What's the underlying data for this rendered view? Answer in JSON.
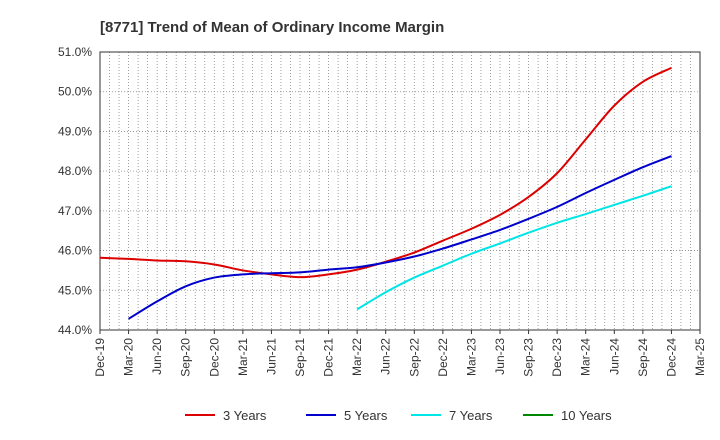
{
  "chart_data": {
    "type": "line",
    "title": "[8771]  Trend of Mean of Ordinary Income Margin",
    "xlabel": "",
    "ylabel": "",
    "x": [
      "Dec-19",
      "Mar-20",
      "Jun-20",
      "Sep-20",
      "Dec-20",
      "Mar-21",
      "Jun-21",
      "Sep-21",
      "Dec-21",
      "Mar-22",
      "Jun-22",
      "Sep-22",
      "Dec-22",
      "Mar-23",
      "Jun-23",
      "Sep-23",
      "Dec-23",
      "Mar-24",
      "Jun-24",
      "Sep-24",
      "Dec-24",
      "Mar-25"
    ],
    "yticks": [
      "44.0%",
      "45.0%",
      "46.0%",
      "47.0%",
      "48.0%",
      "49.0%",
      "50.0%",
      "51.0%"
    ],
    "ylim": [
      44.0,
      51.0
    ],
    "grid": true,
    "legend_position": "bottom",
    "series": [
      {
        "name": "3 Years",
        "color": "#dd0000",
        "values": [
          45.82,
          45.79,
          45.75,
          45.73,
          45.65,
          45.5,
          45.4,
          45.33,
          45.4,
          45.52,
          45.72,
          45.95,
          46.25,
          46.55,
          46.9,
          47.35,
          47.95,
          48.8,
          49.65,
          50.25,
          50.6,
          null
        ]
      },
      {
        "name": "5 Years",
        "color": "#0000cc",
        "values": [
          null,
          44.28,
          44.72,
          45.1,
          45.32,
          45.4,
          45.43,
          45.45,
          45.52,
          45.58,
          45.7,
          45.85,
          46.05,
          46.28,
          46.52,
          46.8,
          47.1,
          47.45,
          47.78,
          48.1,
          48.38,
          null
        ]
      },
      {
        "name": "7 Years",
        "color": "#00e5e5",
        "values": [
          null,
          null,
          null,
          null,
          null,
          null,
          null,
          null,
          null,
          44.52,
          44.95,
          45.32,
          45.62,
          45.92,
          46.18,
          46.45,
          46.7,
          46.92,
          47.15,
          47.38,
          47.62,
          null
        ]
      },
      {
        "name": "10 Years",
        "color": "#008800",
        "values": [
          null,
          null,
          null,
          null,
          null,
          null,
          null,
          null,
          null,
          null,
          null,
          null,
          null,
          null,
          null,
          null,
          null,
          null,
          null,
          null,
          null,
          null
        ]
      }
    ]
  }
}
